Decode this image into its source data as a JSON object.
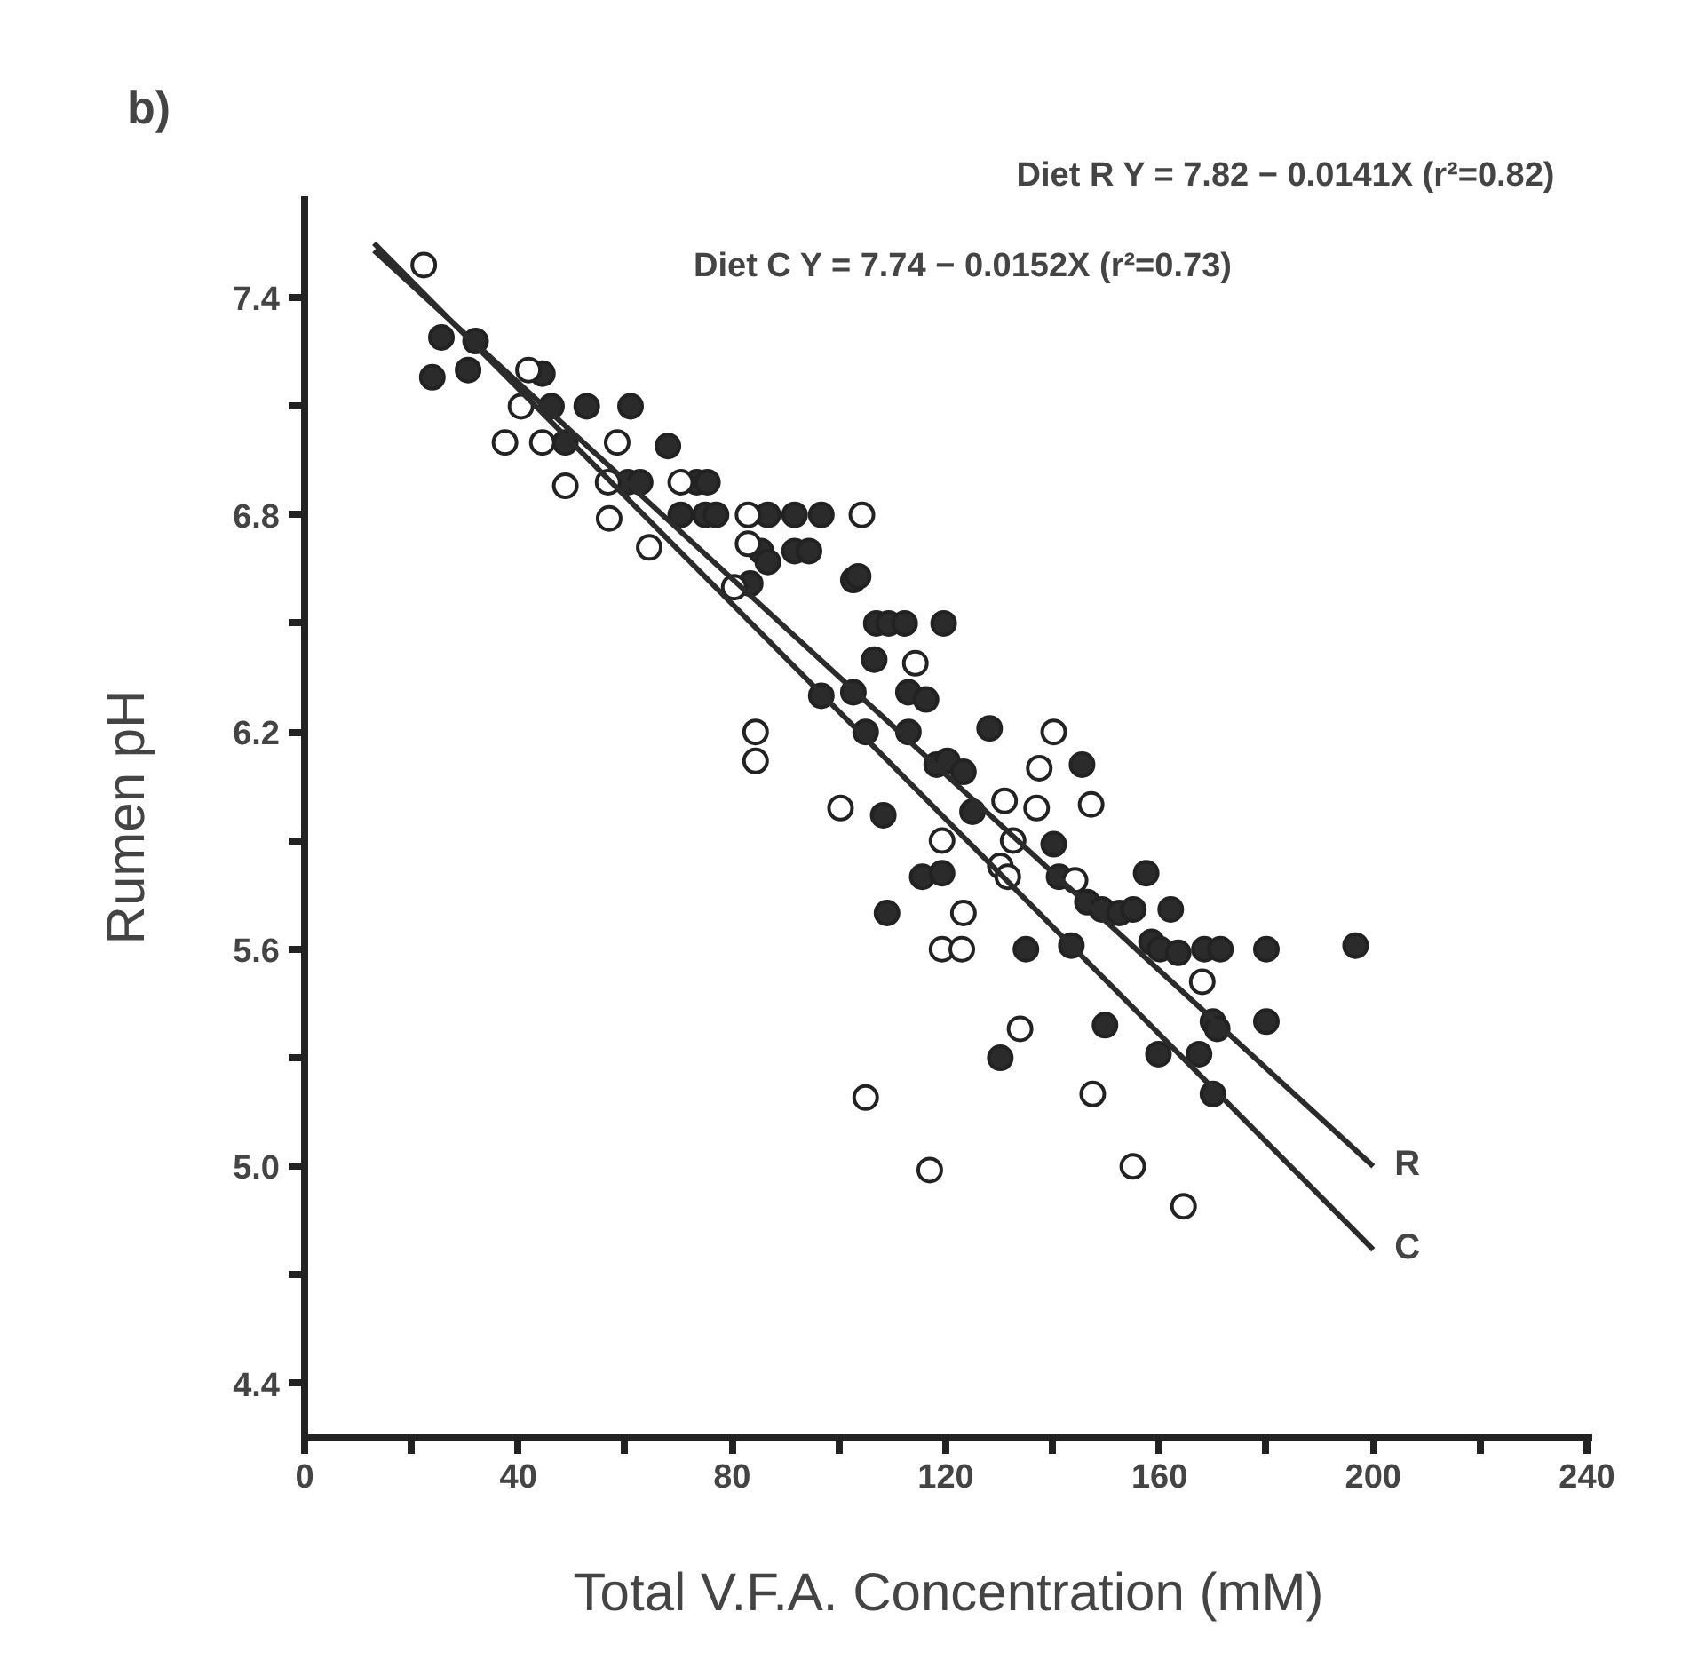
{
  "chart_data": {
    "type": "scatter",
    "title": "b)",
    "xlabel": "Total V.F.A. Concentration (mM)",
    "ylabel": "Rumen pH",
    "xlim": [
      0,
      241
    ],
    "ylim": [
      4.25,
      7.68
    ],
    "xticks": [
      0,
      {
        "value": 20,
        "label": null
      },
      40,
      {
        "value": 60,
        "label": null
      },
      80,
      {
        "value": 100,
        "label": null
      },
      120,
      {
        "value": 140,
        "label": null
      },
      160,
      {
        "value": 180,
        "label": null
      },
      200,
      {
        "value": 220,
        "label": null
      },
      240
    ],
    "yticks": [
      4.4,
      {
        "value": 4.7,
        "label": null
      },
      {
        "value": 5.0,
        "label": "5.0"
      },
      {
        "value": 5.3,
        "label": null
      },
      5.6,
      {
        "value": 5.9,
        "label": null
      },
      6.2,
      {
        "value": 6.5,
        "label": null
      },
      6.8,
      {
        "value": 7.1,
        "label": null
      },
      7.4
    ],
    "grid": false,
    "marker": "circle",
    "annotations": [
      "Diet R  Y = 7.82 − 0.0141X  (r²=0.82)",
      "Diet C  Y = 7.74 − 0.0152X  (r²=0.73)"
    ],
    "series": [
      {
        "color": "#2b2b2b",
        "x": [
          25.6,
          23.9,
          30.6,
          32,
          44.5,
          46.2,
          52.8,
          61,
          48.8,
          68,
          60.5,
          62.8,
          73.4,
          75.4,
          70.4,
          75,
          77,
          86.7,
          91.7,
          85.4,
          86.7,
          91.7,
          83.4,
          96.7,
          94.4,
          102.7,
          103.6,
          107,
          109.3,
          112.3,
          119.6,
          106.6,
          96.7,
          102.7,
          113,
          116.3,
          128.2,
          105,
          113,
          118.3,
          120.3,
          123.3,
          125,
          108.3,
          140.2,
          115.6,
          119.3,
          141.2,
          109,
          145.5,
          146.5,
          149.2,
          152.5,
          155.1,
          157.5,
          162.1,
          158.5,
          160.1,
          163.5,
          168.4,
          171.4,
          180,
          170,
          170.8,
          180,
          149.8,
          130.2,
          159.8,
          167.4,
          170,
          135,
          143.5,
          196.7
        ],
        "values": [
          7.29,
          7.18,
          7.2,
          7.28,
          7.19,
          7.1,
          7.1,
          7.1,
          7.0,
          6.99,
          6.89,
          6.89,
          6.89,
          6.89,
          6.8,
          6.8,
          6.8,
          6.8,
          6.8,
          6.7,
          6.67,
          6.7,
          6.61,
          6.8,
          6.7,
          6.62,
          6.63,
          6.5,
          6.5,
          6.5,
          6.5,
          6.4,
          6.3,
          6.31,
          6.31,
          6.29,
          6.21,
          6.2,
          6.2,
          6.11,
          6.12,
          6.09,
          5.98,
          5.97,
          5.89,
          5.8,
          5.81,
          5.8,
          5.7,
          6.11,
          5.73,
          5.71,
          5.7,
          5.71,
          5.81,
          5.71,
          5.62,
          5.6,
          5.59,
          5.6,
          5.6,
          5.6,
          5.4,
          5.38,
          5.4,
          5.39,
          5.3,
          5.31,
          5.31,
          5.2,
          5.6,
          5.61,
          5.61
        ]
      },
      {
        "color": "#ffffff",
        "x": [
          22.3,
          40.5,
          41.9,
          37.5,
          44.5,
          58.5,
          48.8,
          56.8,
          70.4,
          57,
          83,
          64.5,
          83,
          80.4,
          104.3,
          114.3,
          140.2,
          84.4,
          84.4,
          137.5,
          131,
          137,
          100.3,
          119.3,
          132.6,
          130.2,
          131.6,
          123.3,
          147.2,
          144.2,
          168,
          133.9,
          147.5,
          105,
          117,
          155,
          164.5,
          119.3,
          123
        ],
        "values": [
          7.49,
          7.1,
          7.2,
          7.0,
          7.0,
          7.0,
          6.88,
          6.89,
          6.89,
          6.79,
          6.8,
          6.71,
          6.72,
          6.6,
          6.8,
          6.39,
          6.2,
          6.2,
          6.12,
          6.1,
          6.01,
          5.99,
          5.99,
          5.9,
          5.9,
          5.83,
          5.8,
          5.7,
          6.0,
          5.79,
          5.51,
          5.38,
          5.2,
          5.19,
          4.99,
          5.0,
          4.89,
          5.6,
          5.6
        ]
      },
      {
        "type": "line",
        "marker": "none",
        "name": "R",
        "color": "#2b2b2b",
        "x": [
          13,
          200
        ],
        "values": [
          7.53,
          5.0
        ]
      },
      {
        "type": "line",
        "marker": "none",
        "name": "C",
        "color": "#2b2b2b",
        "x": [
          13,
          200
        ],
        "values": [
          7.55,
          4.77
        ]
      }
    ]
  }
}
